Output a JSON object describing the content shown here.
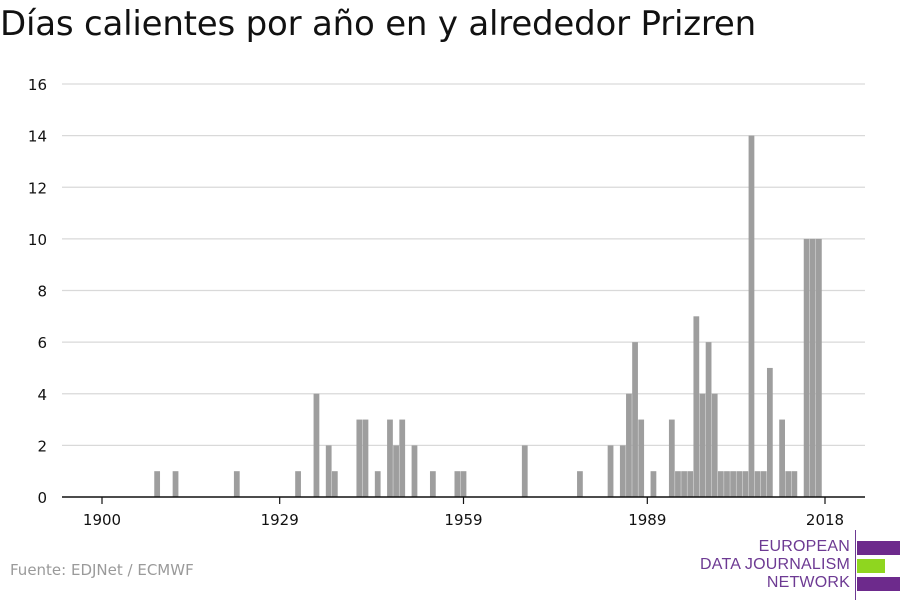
{
  "title": "Días calientes por año en y alrededor Prizren",
  "source": "Fuente: EDJNet / ECMWF",
  "logo": {
    "line1": "EUROPEAN",
    "line2": "DATA JOURNALISM",
    "line3": "NETWORK",
    "colors": {
      "purple": "#6d2a8c",
      "green": "#8fd61f"
    }
  },
  "colors": {
    "bar": "#9e9e9e",
    "grid": "#d9d9d9",
    "axis": "#111111",
    "text": "#111111"
  },
  "chart_data": {
    "type": "bar",
    "title": "Días calientes por año en y alrededor Prizren",
    "xlabel": "",
    "ylabel": "",
    "xlim": [
      1894,
      2021
    ],
    "ylim": [
      0,
      16
    ],
    "yticks": [
      0,
      2,
      4,
      6,
      8,
      10,
      12,
      14,
      16
    ],
    "xticks": [
      1900,
      1929,
      1959,
      1989,
      2018
    ],
    "grid": true,
    "x": [
      1909,
      1912,
      1922,
      1932,
      1935,
      1937,
      1938,
      1942,
      1943,
      1945,
      1947,
      1948,
      1949,
      1951,
      1954,
      1958,
      1959,
      1969,
      1978,
      1983,
      1985,
      1986,
      1987,
      1988,
      1990,
      1993,
      1994,
      1995,
      1996,
      1997,
      1998,
      1999,
      2000,
      2001,
      2002,
      2003,
      2004,
      2005,
      2006,
      2007,
      2008,
      2009,
      2011,
      2012,
      2013,
      2015,
      2016,
      2017
    ],
    "values": [
      1,
      1,
      1,
      1,
      4,
      2,
      1,
      3,
      3,
      1,
      3,
      2,
      3,
      2,
      1,
      1,
      1,
      2,
      1,
      2,
      2,
      4,
      6,
      3,
      1,
      3,
      1,
      1,
      1,
      7,
      4,
      6,
      4,
      1,
      1,
      1,
      1,
      1,
      14,
      1,
      1,
      5,
      3,
      1,
      1,
      10,
      10,
      10
    ]
  }
}
